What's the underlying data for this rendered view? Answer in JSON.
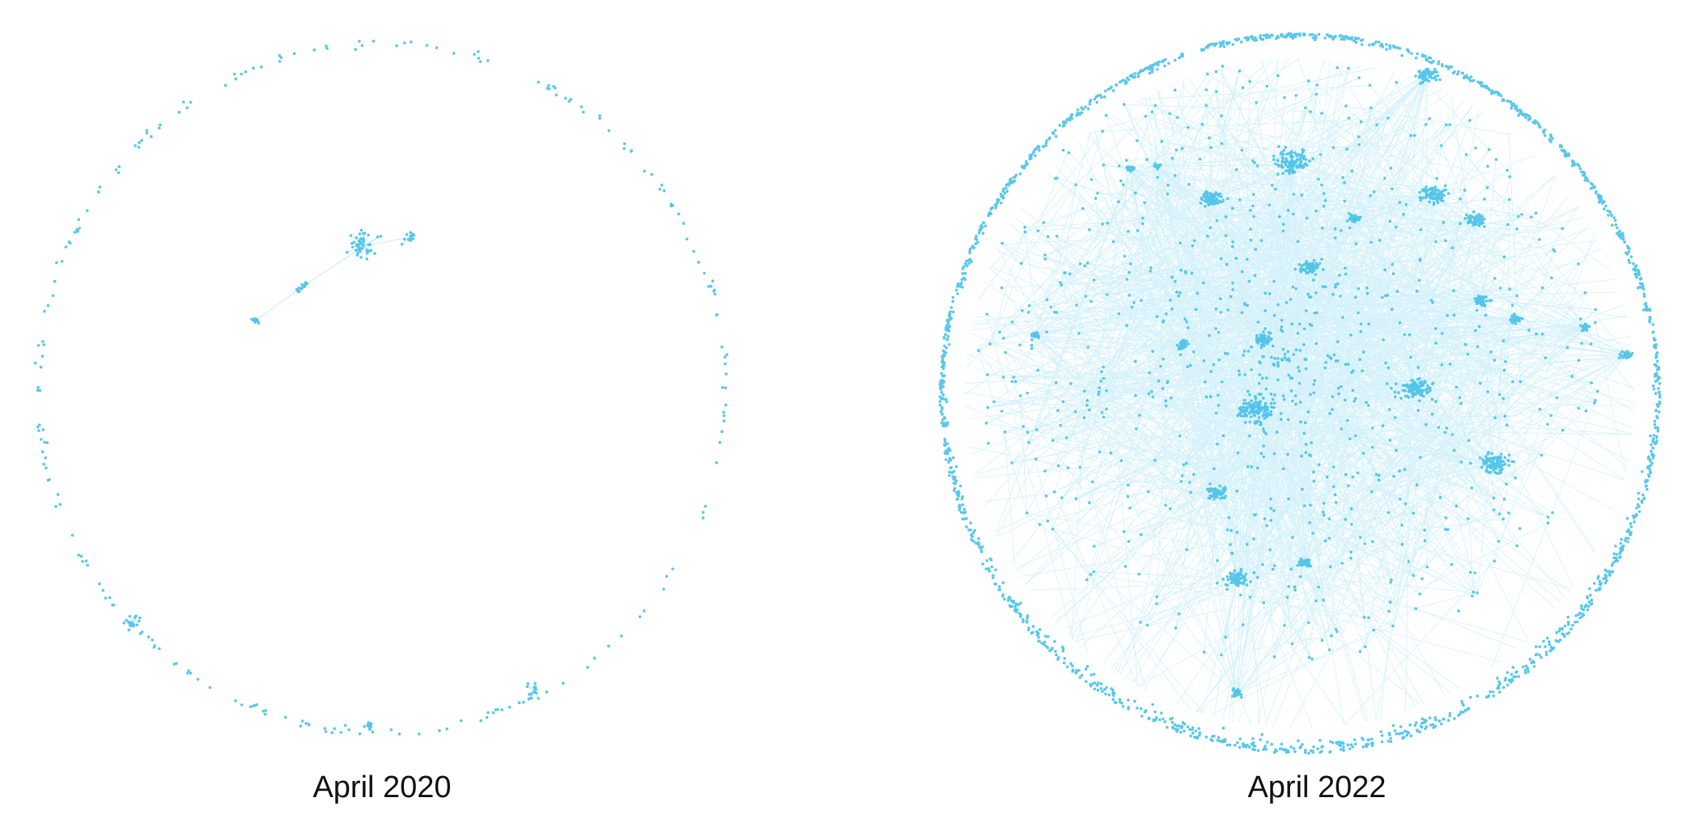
{
  "panels": [
    {
      "label": "April 2020"
    },
    {
      "label": "April 2022"
    }
  ]
}
